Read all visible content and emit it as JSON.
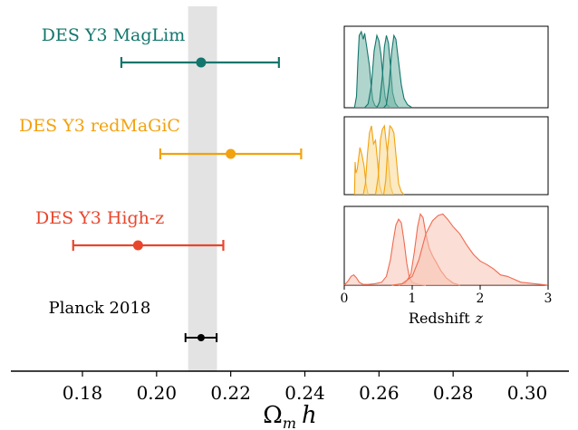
{
  "chart_data": [
    {
      "type": "scatter",
      "xlabel": "Ω",
      "xlabel_sub": "m",
      "xlabel_tail": "h",
      "xlim": [
        0.16,
        0.305
      ],
      "xticks": [
        "0.18",
        "0.20",
        "0.22",
        "0.24",
        "0.26",
        "0.28",
        "0.30"
      ],
      "band": {
        "xmin": 0.2085,
        "xmax": 0.2163,
        "color": "#e3e3e3"
      },
      "series": [
        {
          "name": "DES Y3 MagLim",
          "x": 0.212,
          "xerr_low": 0.0215,
          "xerr_high": 0.021,
          "color": "#12766d"
        },
        {
          "name": "DES Y3 redMaGiC",
          "x": 0.22,
          "xerr_low": 0.019,
          "xerr_high": 0.019,
          "color": "#f2a20f"
        },
        {
          "name": "DES Y3 High-z",
          "x": 0.195,
          "xerr_low": 0.0175,
          "xerr_high": 0.023,
          "color": "#e8462c"
        },
        {
          "name": "Planck 2018",
          "x": 0.212,
          "xerr_low": 0.0042,
          "xerr_high": 0.0042,
          "color": "#000000"
        }
      ]
    },
    {
      "type": "area",
      "xlabel": "Redshift",
      "xlabel_var": "z",
      "xlim": [
        0,
        3
      ],
      "xticks": [
        "0",
        "1",
        "2",
        "3"
      ],
      "panels": [
        {
          "sample": "DES Y3 MagLim",
          "color": "#12766d",
          "fill": "#6fb2a4",
          "bins": [
            {
              "z": [
                0.15,
                0.18,
                0.2,
                0.22,
                0.25,
                0.28,
                0.3,
                0.33,
                0.37,
                0.4,
                0.42,
                0.45,
                0.5
              ],
              "p": [
                0,
                0.15,
                0.6,
                0.95,
                1.0,
                0.9,
                0.98,
                0.8,
                0.55,
                0.25,
                0.1,
                0.03,
                0
              ]
            },
            {
              "z": [
                0.3,
                0.35,
                0.4,
                0.44,
                0.48,
                0.51,
                0.54,
                0.57,
                0.6,
                0.63,
                0.68
              ],
              "p": [
                0,
                0.05,
                0.3,
                0.75,
                0.95,
                0.88,
                0.7,
                0.4,
                0.15,
                0.04,
                0
              ]
            },
            {
              "z": [
                0.48,
                0.52,
                0.56,
                0.59,
                0.62,
                0.65,
                0.68,
                0.71,
                0.75,
                0.8
              ],
              "p": [
                0,
                0.08,
                0.4,
                0.8,
                0.95,
                0.85,
                0.55,
                0.2,
                0.06,
                0
              ]
            },
            {
              "z": [
                0.58,
                0.62,
                0.66,
                0.7,
                0.73,
                0.76,
                0.8,
                0.84,
                0.88,
                0.93,
                1.0
              ],
              "p": [
                0,
                0.04,
                0.3,
                0.75,
                0.95,
                0.9,
                0.6,
                0.3,
                0.12,
                0.04,
                0
              ]
            }
          ]
        },
        {
          "sample": "DES Y3 redMaGiC",
          "color": "#f2a20f",
          "fill": "#f7d98f",
          "bins": [
            {
              "z": [
                0.15,
                0.16,
                0.17,
                0.19,
                0.21,
                0.23,
                0.26,
                0.29,
                0.32,
                0.35
              ],
              "p": [
                0,
                0.45,
                0.3,
                0.35,
                0.5,
                0.65,
                0.55,
                0.4,
                0.15,
                0
              ]
            },
            {
              "z": [
                0.28,
                0.31,
                0.34,
                0.37,
                0.4,
                0.43,
                0.46,
                0.49,
                0.52,
                0.56
              ],
              "p": [
                0,
                0.15,
                0.55,
                0.85,
                0.95,
                0.7,
                0.75,
                0.45,
                0.12,
                0
              ]
            },
            {
              "z": [
                0.46,
                0.5,
                0.53,
                0.56,
                0.59,
                0.62,
                0.65,
                0.68,
                0.72
              ],
              "p": [
                0,
                0.25,
                0.75,
                0.9,
                0.95,
                0.7,
                0.45,
                0.12,
                0
              ]
            },
            {
              "z": [
                0.58,
                0.61,
                0.64,
                0.67,
                0.7,
                0.73,
                0.77,
                0.8,
                0.84,
                0.88
              ],
              "p": [
                0,
                0.2,
                0.65,
                0.95,
                0.92,
                0.85,
                0.45,
                0.15,
                0.04,
                0
              ]
            }
          ]
        },
        {
          "sample": "DES Y3 High-z",
          "color": "#f06a4e",
          "fill": "#f8c2b3",
          "bins": [
            {
              "z": [
                0.0,
                0.05,
                0.1,
                0.14,
                0.18,
                0.22,
                0.28,
                0.35,
                0.45,
                0.55,
                0.62,
                0.68,
                0.72,
                0.76,
                0.8,
                0.84,
                0.88,
                0.92,
                0.96,
                1.0,
                1.05,
                1.1,
                1.2
              ],
              "p": [
                0,
                0.05,
                0.12,
                0.14,
                0.1,
                0.04,
                0.01,
                0.01,
                0.02,
                0.04,
                0.12,
                0.35,
                0.6,
                0.82,
                0.9,
                0.85,
                0.6,
                0.3,
                0.1,
                0.04,
                0.02,
                0.01,
                0
              ]
            },
            {
              "z": [
                0.8,
                0.9,
                0.98,
                1.03,
                1.08,
                1.12,
                1.16,
                1.2,
                1.25,
                1.3,
                1.36,
                1.42,
                1.5,
                1.6,
                1.7
              ],
              "p": [
                0,
                0.03,
                0.15,
                0.45,
                0.8,
                0.97,
                0.92,
                0.7,
                0.5,
                0.4,
                0.3,
                0.2,
                0.1,
                0.03,
                0
              ]
            },
            {
              "z": [
                0.7,
                0.85,
                1.0,
                1.1,
                1.2,
                1.3,
                1.38,
                1.45,
                1.52,
                1.6,
                1.7,
                1.8,
                1.9,
                2.0,
                2.1,
                2.2,
                2.3,
                2.4,
                2.5,
                2.6,
                2.7,
                2.8,
                2.9,
                3.0
              ],
              "p": [
                0,
                0.02,
                0.12,
                0.35,
                0.7,
                0.88,
                0.95,
                0.97,
                0.9,
                0.8,
                0.7,
                0.55,
                0.42,
                0.33,
                0.28,
                0.22,
                0.14,
                0.12,
                0.08,
                0.04,
                0.03,
                0.02,
                0.01,
                0
              ]
            }
          ]
        }
      ]
    }
  ]
}
